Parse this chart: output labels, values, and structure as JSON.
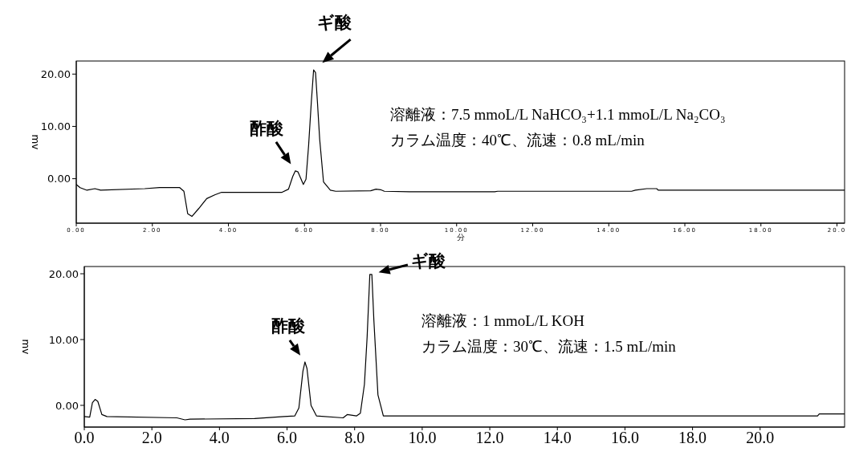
{
  "chart_data": [
    {
      "type": "line",
      "xlabel": "分",
      "ylabel": "mv",
      "xlim": [
        0,
        20.2
      ],
      "ylim": [
        -8.5,
        22.5
      ],
      "xticks": [
        {
          "value": 0,
          "label": "0.00"
        },
        {
          "value": 2,
          "label": "2.00"
        },
        {
          "value": 4,
          "label": "4.00"
        },
        {
          "value": 6,
          "label": "6.00"
        },
        {
          "value": 8,
          "label": "8.00"
        },
        {
          "value": 10,
          "label": "10.00"
        },
        {
          "value": 12,
          "label": "12.00"
        },
        {
          "value": 14,
          "label": "14.00"
        },
        {
          "value": 16,
          "label": "16.00"
        },
        {
          "value": 18,
          "label": "18.00"
        },
        {
          "value": 20,
          "label": "20.0"
        }
      ],
      "yticks": [
        {
          "value": 0,
          "label": "0.00"
        },
        {
          "value": 10,
          "label": "10.00"
        },
        {
          "value": 20,
          "label": "20.00"
        }
      ],
      "marker": "none",
      "series": [
        {
          "color": "#000000",
          "x": [
            0,
            0.1,
            0.28,
            0.49,
            0.64,
            1.8,
            2.19,
            2.72,
            2.83,
            2.93,
            3.04,
            3.22,
            3.43,
            3.64,
            3.82,
            5.41,
            5.58,
            5.69,
            5.76,
            5.83,
            5.97,
            6.04,
            6.11,
            6.18,
            6.24,
            6.29,
            6.34,
            6.4,
            6.5,
            6.68,
            6.82,
            7.74,
            7.88,
            8.0,
            8.1,
            8.8,
            11.0,
            11.08,
            14.6,
            14.7,
            15.0,
            15.26,
            15.3,
            20.2
          ],
          "values": [
            -1.1,
            -1.7,
            -2.2,
            -1.9,
            -2.2,
            -1.9,
            -1.7,
            -1.7,
            -2.4,
            -6.7,
            -7.2,
            -5.7,
            -3.8,
            -3.1,
            -2.6,
            -2.6,
            -2,
            0.4,
            1.5,
            1.3,
            -1.1,
            -0.1,
            6.5,
            14.7,
            20.8,
            20.3,
            14.7,
            7.5,
            -0.6,
            -2.2,
            -2.4,
            -2.3,
            -2,
            -2.1,
            -2.4,
            -2.5,
            -2.5,
            -2.4,
            -2.4,
            -2.2,
            -1.9,
            -1.9,
            -2.2,
            -2.2
          ]
        }
      ],
      "annotations": [
        {
          "text": "ギ酸",
          "x": 6.24,
          "y": 20.8
        },
        {
          "text": "酢酸",
          "x": 5.76,
          "y": 1.5
        },
        "溶離液：7.5 mmoL/L NaHCO₃+1.1 mmoL/L Na₂CO₃",
        "カラム温度：40℃、流速：0.8 mL/min"
      ]
    },
    {
      "type": "line",
      "ylabel": "mv",
      "xlim": [
        0,
        22.5
      ],
      "ylim": [
        -3.3,
        21.1
      ],
      "xticks": [
        {
          "value": 0,
          "label": "0.0"
        },
        {
          "value": 2,
          "label": "2.0"
        },
        {
          "value": 4,
          "label": "4.0"
        },
        {
          "value": 6,
          "label": "6.0"
        },
        {
          "value": 8,
          "label": "8.0"
        },
        {
          "value": 10,
          "label": "10.0"
        },
        {
          "value": 12,
          "label": "12.0"
        },
        {
          "value": 14,
          "label": "14.0"
        },
        {
          "value": 16,
          "label": "16.0"
        },
        {
          "value": 18,
          "label": "18.0"
        },
        {
          "value": 20,
          "label": "20.0"
        }
      ],
      "yticks": [
        {
          "value": 0,
          "label": "0.00"
        },
        {
          "value": 10,
          "label": "10.00"
        },
        {
          "value": 20,
          "label": "20.00"
        }
      ],
      "marker": "none",
      "series": [
        {
          "color": "#000000",
          "x": [
            0,
            0.16,
            0.24,
            0.32,
            0.4,
            0.52,
            0.67,
            2.74,
            2.98,
            3.13,
            5.04,
            5.91,
            6.23,
            6.35,
            6.47,
            6.53,
            6.59,
            6.71,
            6.87,
            7.66,
            7.78,
            8.06,
            8.17,
            8.29,
            8.37,
            8.45,
            8.51,
            8.57,
            8.69,
            8.85,
            21.7,
            21.75,
            22.5
          ],
          "values": [
            -1.7,
            -1.8,
            0.4,
            0.9,
            0.6,
            -1.4,
            -1.7,
            -1.9,
            -2.2,
            -2.1,
            -2,
            -1.7,
            -1.6,
            -0.4,
            5.2,
            6.6,
            5.6,
            0,
            -1.6,
            -1.9,
            -1.4,
            -1.6,
            -1.2,
            3.2,
            10.4,
            19.9,
            19.9,
            12.9,
            1.6,
            -1.6,
            -1.6,
            -1.3,
            -1.3
          ]
        }
      ],
      "annotations": [
        {
          "text": "ギ酸",
          "x": 8.48,
          "y": 19.9
        },
        {
          "text": "酢酸",
          "x": 6.53,
          "y": 6.6
        },
        "溶離液：1 mmoL/L KOH",
        "カラム温度：30℃、流速：1.5 mL/min"
      ]
    }
  ]
}
